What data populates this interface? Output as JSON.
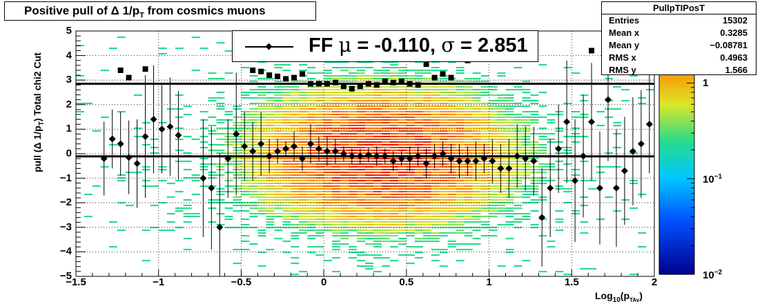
{
  "title": {
    "text_main": "Positive pull of ",
    "text_delta": "Δ 1/p",
    "text_sub": "T",
    "text_rest": "  from cosmics muons"
  },
  "stats": {
    "name": "PullpTIPosT",
    "rows": [
      {
        "key": "Entries",
        "value": "15302"
      },
      {
        "key": "Mean x",
        "value": "0.3285"
      },
      {
        "key": "Mean y",
        "value": "−0.08781"
      },
      {
        "key": "RMS x",
        "value": "0.4963"
      },
      {
        "key": "RMS y",
        "value": "1.566"
      }
    ]
  },
  "legend": {
    "prefix": "FF ",
    "mu_symbol": "μ",
    "mu_text": " = -0.110, ",
    "sigma_symbol": "σ",
    "sigma_text": " =   2.851"
  },
  "colors": {
    "frame": "#000000",
    "marker": "#000000",
    "fit_line": "#000000"
  },
  "chart_data": {
    "type": "scatter",
    "xlabel_main": "Log",
    "xlabel_sub1": "10",
    "xlabel_mid": "(p",
    "xlabel_sub2": "TAv",
    "xlabel_end": ")",
    "ylabel_main": "pull (Δ 1/p",
    "ylabel_sub": "T",
    "ylabel_end": ")  Total chi2 Cut",
    "xlim": [
      -1.5,
      2.0
    ],
    "ylim": [
      -5,
      5
    ],
    "grid": true,
    "xticks": [
      -1.5,
      -1,
      -0.5,
      0,
      0.5,
      1,
      1.5,
      2
    ],
    "xtick_labels": [
      "−1.5",
      "−1",
      "−0.5",
      "0",
      "0.5",
      "1",
      "1.5",
      "2"
    ],
    "yticks": [
      -5,
      -4,
      -3,
      -2,
      -1,
      0,
      1,
      2,
      3,
      4,
      5
    ],
    "ytick_labels": [
      "−5",
      "−4",
      "−3",
      "−2",
      "−1",
      "0",
      "1",
      "2",
      "3",
      "4",
      "5"
    ],
    "z_scale": "log",
    "zlim": [
      0.01,
      3.5
    ],
    "z_ticks": [
      {
        "value": 0.01,
        "base": "10",
        "exp": "−2"
      },
      {
        "value": 0.1,
        "base": "10",
        "exp": "−1"
      },
      {
        "value": 1,
        "label": "1"
      }
    ],
    "histogram": {
      "x_center": 0.35,
      "x_spread": 0.45,
      "y_center": -0.1,
      "y_spread": 1.6,
      "peak": 3.0
    },
    "fit_lines": [
      {
        "name": "mean",
        "y": -0.11
      },
      {
        "name": "sigma",
        "y": 2.851
      }
    ],
    "series": [
      {
        "name": "mean",
        "marker": "diamond",
        "x": [
          -1.33,
          -1.28,
          -1.23,
          -1.18,
          -1.13,
          -1.08,
          -1.03,
          -0.98,
          -0.93,
          -0.88,
          -0.73,
          -0.68,
          -0.63,
          -0.58,
          -0.53,
          -0.48,
          -0.43,
          -0.38,
          -0.33,
          -0.28,
          -0.23,
          -0.18,
          -0.13,
          -0.08,
          -0.03,
          0.02,
          0.07,
          0.12,
          0.17,
          0.22,
          0.27,
          0.32,
          0.37,
          0.42,
          0.47,
          0.52,
          0.57,
          0.62,
          0.67,
          0.72,
          0.77,
          0.82,
          0.87,
          0.92,
          0.97,
          1.02,
          1.07,
          1.12,
          1.17,
          1.22,
          1.27,
          1.32,
          1.37,
          1.42,
          1.47,
          1.52,
          1.57,
          1.62,
          1.67,
          1.72,
          1.77,
          1.82,
          1.87,
          1.92,
          1.97
        ],
        "y": [
          -0.2,
          0.6,
          0.4,
          -0.15,
          -0.4,
          0.7,
          1.4,
          1.0,
          1.1,
          0.75,
          -1.0,
          -1.4,
          -3.0,
          -0.2,
          0.8,
          0.3,
          0.1,
          0.4,
          -0.1,
          0.1,
          0.2,
          0.3,
          -0.2,
          0.4,
          0.2,
          0.1,
          0.1,
          0.0,
          -0.1,
          -0.1,
          -0.05,
          -0.1,
          -0.1,
          -0.3,
          -0.2,
          -0.2,
          -0.1,
          -0.4,
          -0.1,
          0.0,
          -0.2,
          -0.3,
          -0.3,
          -0.3,
          -0.2,
          -0.3,
          -0.6,
          -0.6,
          -0.1,
          -0.2,
          -0.3,
          -2.6,
          -1.4,
          0.2,
          1.3,
          -1.1,
          -0.1,
          1.3,
          -1.4,
          2.2,
          -1.4,
          -0.7,
          0.1,
          0.4,
          1.2
        ],
        "yerr": [
          1.5,
          1.2,
          1.3,
          1.5,
          1.8,
          2.5,
          2.2,
          1.8,
          2.0,
          1.8,
          2.4,
          2.5,
          3.0,
          1.6,
          2.5,
          1.4,
          1.2,
          1.3,
          0.7,
          0.5,
          0.3,
          0.6,
          0.5,
          0.8,
          0.5,
          0.6,
          0.5,
          0.3,
          0.3,
          0.3,
          0.3,
          0.4,
          0.3,
          0.4,
          0.3,
          0.5,
          0.4,
          0.6,
          0.5,
          0.5,
          0.6,
          0.7,
          0.6,
          0.8,
          0.6,
          0.9,
          1.0,
          1.2,
          1.3,
          1.3,
          1.4,
          2.0,
          2.0,
          1.8,
          2.5,
          2.5,
          2.5,
          2.4,
          2.3,
          2.5,
          2.4,
          2.2,
          2.2,
          2.2,
          2.0
        ]
      },
      {
        "name": "rms",
        "marker": "square",
        "x": [
          -1.23,
          -1.18,
          -1.08,
          -0.43,
          -0.38,
          -0.33,
          -0.28,
          -0.23,
          -0.18,
          -0.13,
          -0.08,
          -0.03,
          0.02,
          0.07,
          0.12,
          0.17,
          0.22,
          0.27,
          0.32,
          0.37,
          0.42,
          0.47,
          0.52,
          0.57,
          0.62,
          0.67,
          0.72,
          0.77,
          0.87,
          1.62
        ],
        "y": [
          3.4,
          3.1,
          3.45,
          3.4,
          3.35,
          3.2,
          3.15,
          3.05,
          3.1,
          3.25,
          2.85,
          2.85,
          2.85,
          2.9,
          2.75,
          2.65,
          2.75,
          2.85,
          2.8,
          2.95,
          2.9,
          2.95,
          2.85,
          2.8,
          3.65,
          3.1,
          3.25,
          3.1,
          3.8,
          4.2
        ]
      }
    ]
  }
}
